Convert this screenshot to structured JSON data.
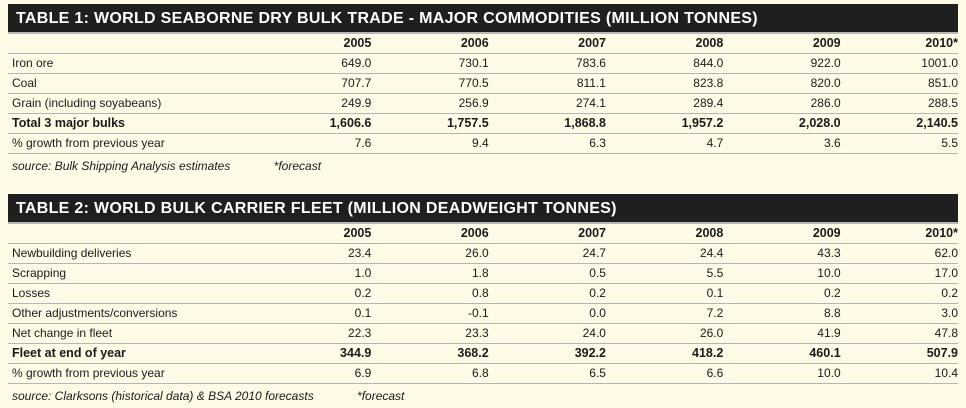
{
  "table1": {
    "title": "TABLE 1:  WORLD SEABORNE DRY BULK  TRADE - MAJOR COMMODITIES (MILLION TONNES)",
    "years": [
      "2005",
      "2006",
      "2007",
      "2008",
      "2009",
      "2010*"
    ],
    "rows": [
      {
        "label": "Iron ore",
        "values": [
          "649.0",
          "730.1",
          "783.6",
          "844.0",
          "922.0",
          "1001.0"
        ]
      },
      {
        "label": "Coal",
        "values": [
          "707.7",
          "770.5",
          "811.1",
          "823.8",
          "820.0",
          "851.0"
        ]
      },
      {
        "label": "Grain (including soyabeans)",
        "values": [
          "249.9",
          "256.9",
          "274.1",
          "289.4",
          "286.0",
          "288.5"
        ]
      },
      {
        "label": "Total 3 major bulks",
        "values": [
          "1,606.6",
          "1,757.5",
          "1,868.8",
          "1,957.2",
          "2,028.0",
          "2,140.5"
        ]
      },
      {
        "label": "% growth from previous year",
        "values": [
          "7.6",
          "9.4",
          "6.3",
          "4.7",
          "3.6",
          "5.5"
        ]
      }
    ],
    "source": "source: Bulk Shipping Analysis estimates",
    "footnote": "*forecast"
  },
  "table2": {
    "title": "TABLE 2:  WORLD BULK CARRIER FLEET (MILLION DEADWEIGHT TONNES)",
    "years": [
      "2005",
      "2006",
      "2007",
      "2008",
      "2009",
      "2010*"
    ],
    "rows": [
      {
        "label": "Newbuilding deliveries",
        "values": [
          "23.4",
          "26.0",
          "24.7",
          "24.4",
          "43.3",
          "62.0"
        ]
      },
      {
        "label": "Scrapping",
        "values": [
          "1.0",
          "1.8",
          "0.5",
          "5.5",
          "10.0",
          "17.0"
        ]
      },
      {
        "label": "Losses",
        "values": [
          "0.2",
          "0.8",
          "0.2",
          "0.1",
          "0.2",
          "0.2"
        ]
      },
      {
        "label": "Other adjustments/conversions",
        "values": [
          "0.1",
          "-0.1",
          "0.0",
          "7.2",
          "8.8",
          "3.0"
        ]
      },
      {
        "label": "Net change in fleet",
        "values": [
          "22.3",
          "23.3",
          "24.0",
          "26.0",
          "41.9",
          "47.8"
        ]
      },
      {
        "label": "Fleet at end of year",
        "values": [
          "344.9",
          "368.2",
          "392.2",
          "418.2",
          "460.1",
          "507.9"
        ]
      },
      {
        "label": "% growth from previous year",
        "values": [
          "6.9",
          "6.8",
          "6.5",
          "6.6",
          "10.0",
          "10.4"
        ]
      }
    ],
    "source": "source: Clarksons (historical data) & BSA 2010 forecasts",
    "footnote": "*forecast"
  }
}
